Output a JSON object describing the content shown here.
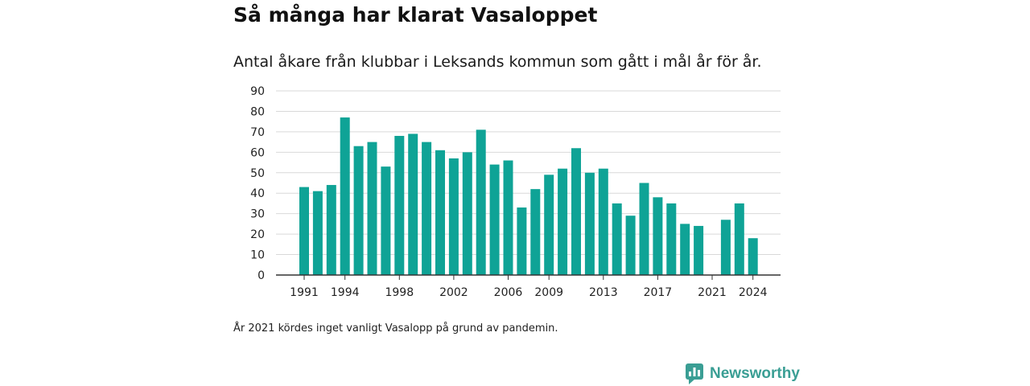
{
  "title": "Så många har klarat Vasaloppet",
  "subtitle": "Antal åkare från klubbar i Leksands kommun som gått i mål år för år.",
  "note": "År 2021 kördes inget vanligt Vasalopp på grund av pandemin.",
  "brand": {
    "name": "Newsworthy",
    "color": "#3a9e94",
    "icon": "chart-bubble-icon"
  },
  "colors": {
    "bar": "#0fa396",
    "grid": "#d9d9d9",
    "axis": "#333333"
  },
  "chart_data": {
    "type": "bar",
    "title": "Så många har klarat Vasaloppet",
    "subtitle": "Antal åkare från klubbar i Leksands kommun som gått i mål år för år.",
    "xlabel": "",
    "ylabel": "",
    "ylim": [
      0,
      90
    ],
    "yticks": [
      0,
      10,
      20,
      30,
      40,
      50,
      60,
      70,
      80,
      90
    ],
    "grid": true,
    "xtick_labels": [
      "1991",
      "1994",
      "1998",
      "2002",
      "2006",
      "2009",
      "2013",
      "2017",
      "2021",
      "2024"
    ],
    "categories": [
      "1991",
      "1992",
      "1993",
      "1994",
      "1995",
      "1996",
      "1997",
      "1998",
      "1999",
      "2000",
      "2001",
      "2002",
      "2003",
      "2004",
      "2005",
      "2006",
      "2007",
      "2008",
      "2009",
      "2010",
      "2011",
      "2012",
      "2013",
      "2014",
      "2015",
      "2016",
      "2017",
      "2018",
      "2019",
      "2020",
      "2021",
      "2022",
      "2023",
      "2024"
    ],
    "values": [
      43,
      41,
      44,
      77,
      63,
      65,
      53,
      68,
      69,
      65,
      61,
      57,
      60,
      71,
      54,
      56,
      33,
      42,
      49,
      52,
      62,
      50,
      52,
      35,
      29,
      45,
      38,
      35,
      25,
      24,
      0,
      27,
      35,
      18
    ]
  }
}
